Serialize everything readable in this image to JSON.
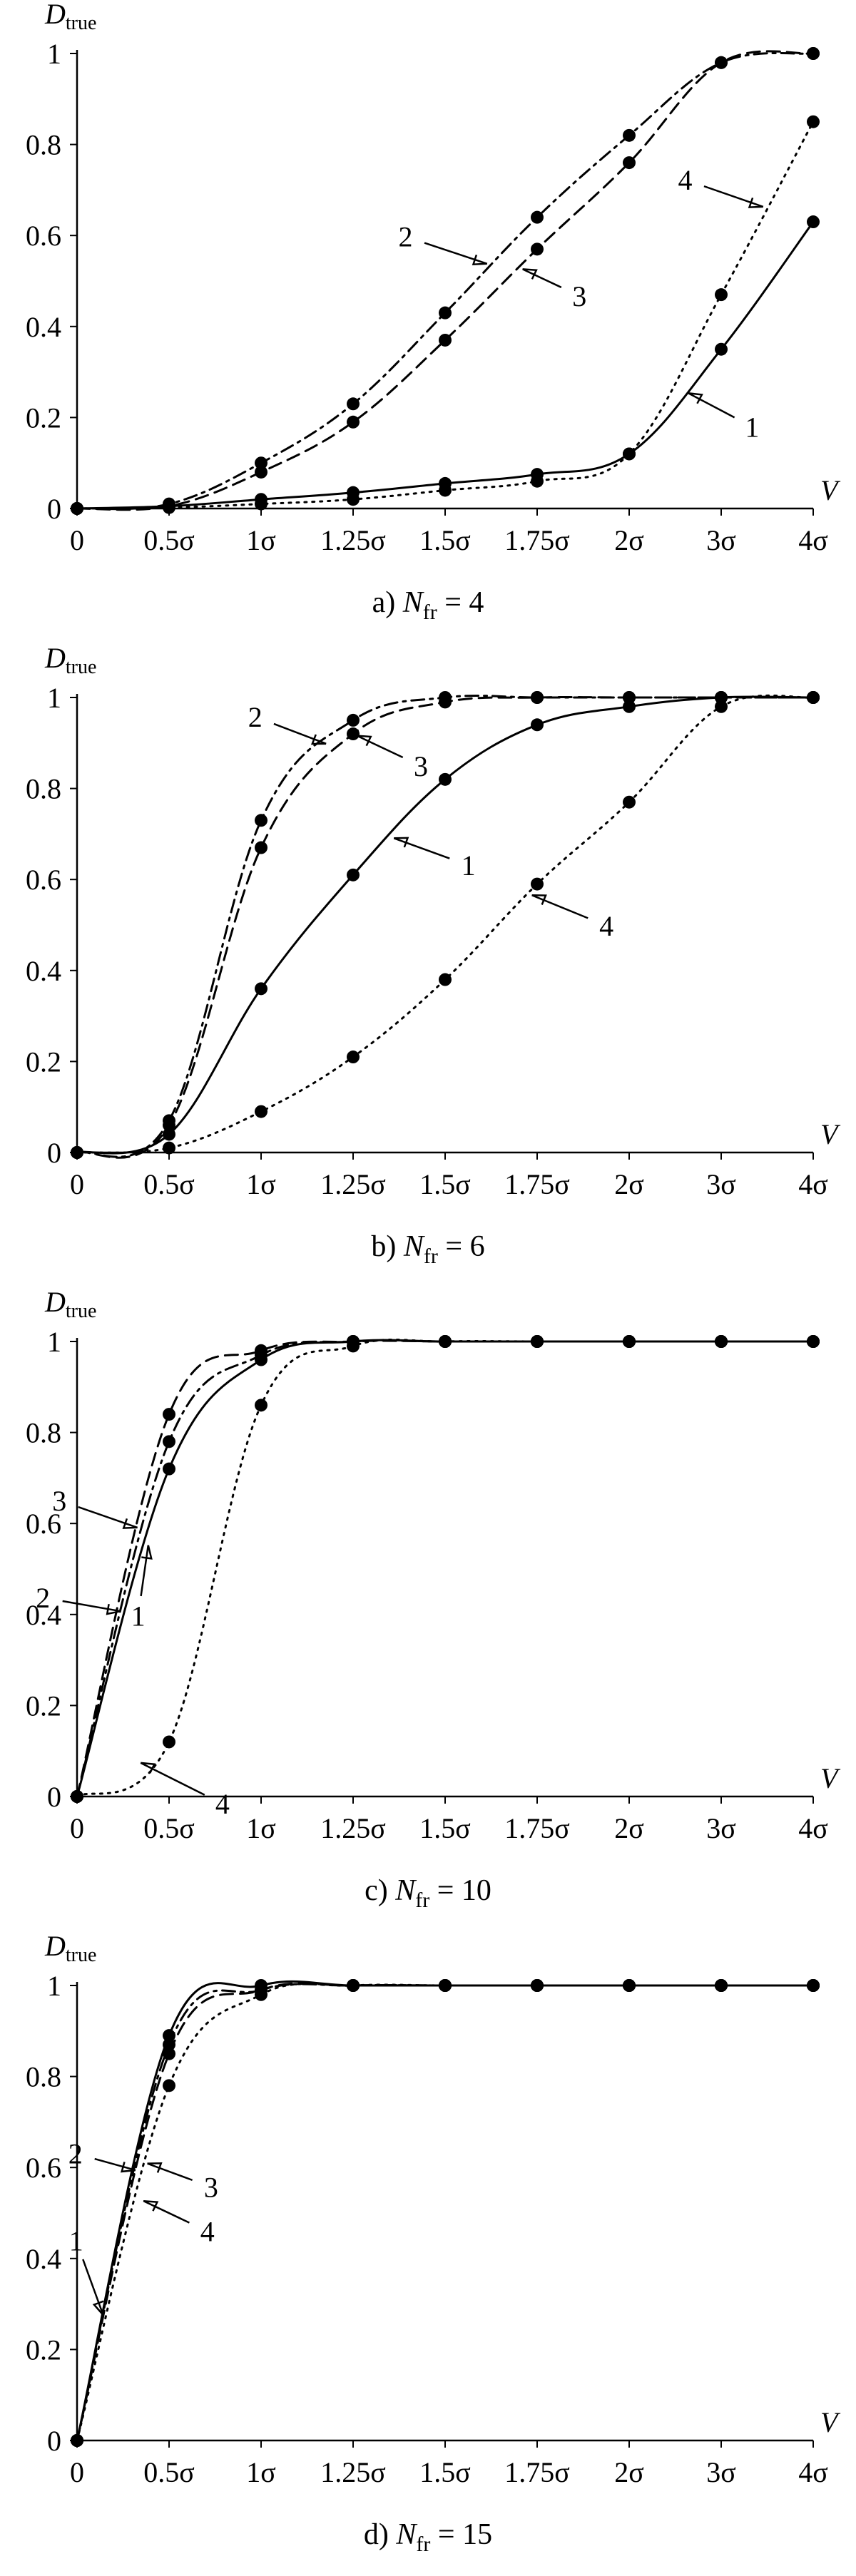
{
  "chart_data": [
    {
      "type": "line",
      "title": "a) N_fr = 4",
      "caption": {
        "prefix": "a) ",
        "var": "N",
        "sub": "fr",
        "suffix": " = 4"
      },
      "ylabel": {
        "var": "D",
        "sub": "true"
      },
      "xlabel": "V",
      "categories": [
        "0",
        "0.5σ",
        "1σ",
        "1.25σ",
        "1.5σ",
        "1.75σ",
        "2σ",
        "3σ",
        "4σ"
      ],
      "yticks": [
        "0",
        "0.2",
        "0.4",
        "0.6",
        "0.8",
        "1"
      ],
      "ylim": [
        0,
        1
      ],
      "series": [
        {
          "name": "1",
          "style": "solid",
          "values": [
            0,
            0.005,
            0.02,
            0.035,
            0.055,
            0.075,
            0.12,
            0.35,
            0.63
          ]
        },
        {
          "name": "2",
          "style": "dashdot",
          "values": [
            0,
            0.01,
            0.1,
            0.23,
            0.43,
            0.64,
            0.82,
            0.98,
            1.0
          ]
        },
        {
          "name": "3",
          "style": "dashed",
          "values": [
            0,
            0.005,
            0.08,
            0.19,
            0.37,
            0.57,
            0.76,
            0.98,
            1.0
          ]
        },
        {
          "name": "4",
          "style": "dotted",
          "values": [
            0,
            0.002,
            0.01,
            0.02,
            0.04,
            0.06,
            0.12,
            0.47,
            0.85
          ]
        }
      ],
      "labels": [
        {
          "text": "2",
          "series": 1,
          "at": 4.5
        },
        {
          "text": "3",
          "series": 2,
          "at": 4.8
        },
        {
          "text": "4",
          "series": 3,
          "at": 7.5
        },
        {
          "text": "1",
          "series": 0,
          "at": 6.6
        }
      ]
    },
    {
      "type": "line",
      "title": "b) N_fr = 6",
      "caption": {
        "prefix": "b) ",
        "var": "N",
        "sub": "fr",
        "suffix": " = 6"
      },
      "ylabel": {
        "var": "D",
        "sub": "true"
      },
      "xlabel": "V",
      "categories": [
        "0",
        "0.5σ",
        "1σ",
        "1.25σ",
        "1.5σ",
        "1.75σ",
        "2σ",
        "3σ",
        "4σ"
      ],
      "yticks": [
        "0",
        "0.2",
        "0.4",
        "0.6",
        "0.8",
        "1"
      ],
      "ylim": [
        0,
        1
      ],
      "series": [
        {
          "name": "1",
          "style": "solid",
          "values": [
            0,
            0.04,
            0.36,
            0.61,
            0.82,
            0.94,
            0.98,
            1.0,
            1.0
          ]
        },
        {
          "name": "2",
          "style": "dashdot",
          "values": [
            0,
            0.07,
            0.73,
            0.95,
            1.0,
            1.0,
            1.0,
            1.0,
            1.0
          ]
        },
        {
          "name": "3",
          "style": "dashed",
          "values": [
            0,
            0.06,
            0.67,
            0.92,
            0.99,
            1.0,
            1.0,
            1.0,
            1.0
          ]
        },
        {
          "name": "4",
          "style": "dotted",
          "values": [
            0,
            0.01,
            0.09,
            0.21,
            0.38,
            0.59,
            0.77,
            0.98,
            1.0
          ]
        }
      ],
      "labels": [
        {
          "text": "2",
          "series": 1,
          "at": 2.75
        },
        {
          "text": "3",
          "series": 2,
          "at": 3.0
        },
        {
          "text": "1",
          "series": 0,
          "at": 3.4
        },
        {
          "text": "4",
          "series": 3,
          "at": 4.9
        }
      ]
    },
    {
      "type": "line",
      "title": "c) N_fr = 10",
      "caption": {
        "prefix": "c) ",
        "var": "N",
        "sub": "fr",
        "suffix": " = 10"
      },
      "ylabel": {
        "var": "D",
        "sub": "true"
      },
      "xlabel": "V",
      "categories": [
        "0",
        "0.5σ",
        "1σ",
        "1.25σ",
        "1.5σ",
        "1.75σ",
        "2σ",
        "3σ",
        "4σ"
      ],
      "yticks": [
        "0",
        "0.2",
        "0.4",
        "0.6",
        "0.8",
        "1"
      ],
      "ylim": [
        0,
        1
      ],
      "series": [
        {
          "name": "1",
          "style": "solid",
          "values": [
            0,
            0.72,
            0.96,
            1.0,
            1.0,
            1.0,
            1.0,
            1.0,
            1.0
          ]
        },
        {
          "name": "2",
          "style": "dashdot",
          "values": [
            0,
            0.78,
            0.97,
            1.0,
            1.0,
            1.0,
            1.0,
            1.0,
            1.0
          ]
        },
        {
          "name": "3",
          "style": "dashed",
          "values": [
            0,
            0.84,
            0.98,
            1.0,
            1.0,
            1.0,
            1.0,
            1.0,
            1.0
          ]
        },
        {
          "name": "4",
          "style": "dotted",
          "values": [
            0,
            0.12,
            0.86,
            0.99,
            1.0,
            1.0,
            1.0,
            1.0,
            1.0
          ]
        }
      ],
      "labels": [
        {
          "text": "3",
          "series": 2,
          "at": 0.7
        },
        {
          "text": "2",
          "series": 1,
          "at": 0.52
        },
        {
          "text": "1",
          "series": 0,
          "at": 0.78
        },
        {
          "text": "4",
          "series": 3,
          "at": 0.65
        }
      ]
    },
    {
      "type": "line",
      "title": "d) N_fr = 15",
      "caption": {
        "prefix": "d) ",
        "var": "N",
        "sub": "fr",
        "suffix": " = 15"
      },
      "ylabel": {
        "var": "D",
        "sub": "true"
      },
      "xlabel": "V",
      "categories": [
        "0",
        "0.5σ",
        "1σ",
        "1.25σ",
        "1.5σ",
        "1.75σ",
        "2σ",
        "3σ",
        "4σ"
      ],
      "yticks": [
        "0",
        "0.2",
        "0.4",
        "0.6",
        "0.8",
        "1"
      ],
      "ylim": [
        0,
        1
      ],
      "series": [
        {
          "name": "1",
          "style": "solid",
          "values": [
            0,
            0.89,
            1.0,
            1.0,
            1.0,
            1.0,
            1.0,
            1.0,
            1.0
          ]
        },
        {
          "name": "2",
          "style": "dashdot",
          "values": [
            0,
            0.87,
            0.99,
            1.0,
            1.0,
            1.0,
            1.0,
            1.0,
            1.0
          ]
        },
        {
          "name": "3",
          "style": "dashed",
          "values": [
            0,
            0.85,
            0.99,
            1.0,
            1.0,
            1.0,
            1.0,
            1.0,
            1.0
          ]
        },
        {
          "name": "4",
          "style": "dotted",
          "values": [
            0,
            0.78,
            0.98,
            1.0,
            1.0,
            1.0,
            1.0,
            1.0,
            1.0
          ]
        }
      ],
      "labels": [
        {
          "text": "2",
          "series": 1,
          "at": 0.68
        },
        {
          "text": "3",
          "series": 2,
          "at": 0.72
        },
        {
          "text": "4",
          "series": 3,
          "at": 0.68
        },
        {
          "text": "1",
          "series": 0,
          "at": 0.3
        }
      ]
    }
  ]
}
